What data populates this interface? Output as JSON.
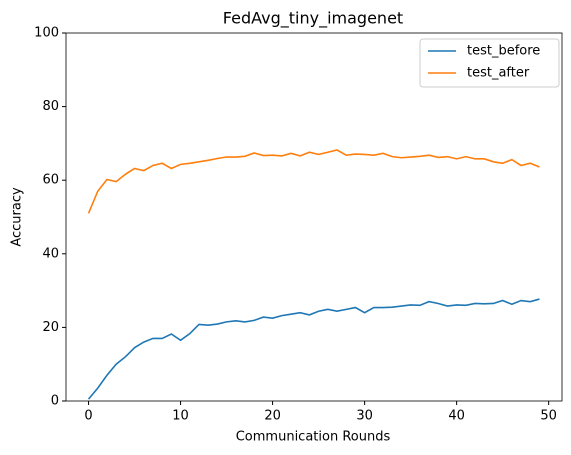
{
  "chart_data": {
    "type": "line",
    "title": "FedAvg_tiny_imagenet",
    "xlabel": "Communication Rounds",
    "ylabel": "Accuracy",
    "x": [
      0,
      1,
      2,
      3,
      4,
      5,
      6,
      7,
      8,
      9,
      10,
      11,
      12,
      13,
      14,
      15,
      16,
      17,
      18,
      19,
      20,
      21,
      22,
      23,
      24,
      25,
      26,
      27,
      28,
      29,
      30,
      31,
      32,
      33,
      34,
      35,
      36,
      37,
      38,
      39,
      40,
      41,
      42,
      43,
      44,
      45,
      46,
      47,
      48,
      49
    ],
    "series": [
      {
        "name": "test_before",
        "color": "#1f77b4",
        "values": [
          0.5,
          3.5,
          7,
          10,
          12,
          14.5,
          16,
          17,
          17,
          18.2,
          16.5,
          18.3,
          20.8,
          20.6,
          20.9,
          21.5,
          21.8,
          21.5,
          21.9,
          22.8,
          22.5,
          23.2,
          23.6,
          24,
          23.4,
          24.4,
          24.9,
          24.4,
          24.9,
          25.4,
          24,
          25.4,
          25.4,
          25.5,
          25.8,
          26.1,
          26,
          27,
          26.5,
          25.8,
          26.1,
          26,
          26.5,
          26.4,
          26.5,
          27.3,
          26.3,
          27.3,
          27,
          27.7
        ]
      },
      {
        "name": "test_after",
        "color": "#ff7f0e",
        "values": [
          51,
          57,
          60.2,
          59.6,
          61.6,
          63.2,
          62.6,
          64,
          64.6,
          63.2,
          64.3,
          64.6,
          65,
          65.4,
          65.9,
          66.3,
          66.3,
          66.5,
          67.4,
          66.7,
          66.8,
          66.6,
          67.3,
          66.6,
          67.6,
          67,
          67.6,
          68.2,
          66.8,
          67.1,
          67,
          66.8,
          67.3,
          66.4,
          66.1,
          66.3,
          66.5,
          66.8,
          66.2,
          66.4,
          65.8,
          66.4,
          65.8,
          65.8,
          65,
          64.6,
          65.6,
          64,
          64.6,
          63.6
        ]
      }
    ],
    "xlim": [
      -2.45,
      51.45
    ],
    "xticks": [
      0,
      10,
      20,
      30,
      40,
      50
    ],
    "ylim": [
      0,
      100
    ],
    "yticks": [
      0,
      20,
      40,
      60,
      80,
      100
    ],
    "legend": "upper right",
    "grid": false
  }
}
